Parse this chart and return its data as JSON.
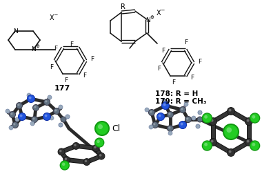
{
  "background_color": "#ffffff",
  "label_177": "177",
  "label_178": "178: R = H",
  "label_179": "179: R = CH₃",
  "cl_label": "Cl",
  "fig_width": 3.8,
  "fig_height": 2.81,
  "dpi": 100,
  "colors": {
    "bond_2d": "#111111",
    "C_3d": "#607080",
    "C_dark": "#303030",
    "N_3d": "#2255dd",
    "H_3d": "#99aabb",
    "Cl_3d": "#22cc22",
    "Cl_edge": "#119911",
    "bond_3d": "#2a2a2a",
    "bond_3d_light": "#555566"
  }
}
